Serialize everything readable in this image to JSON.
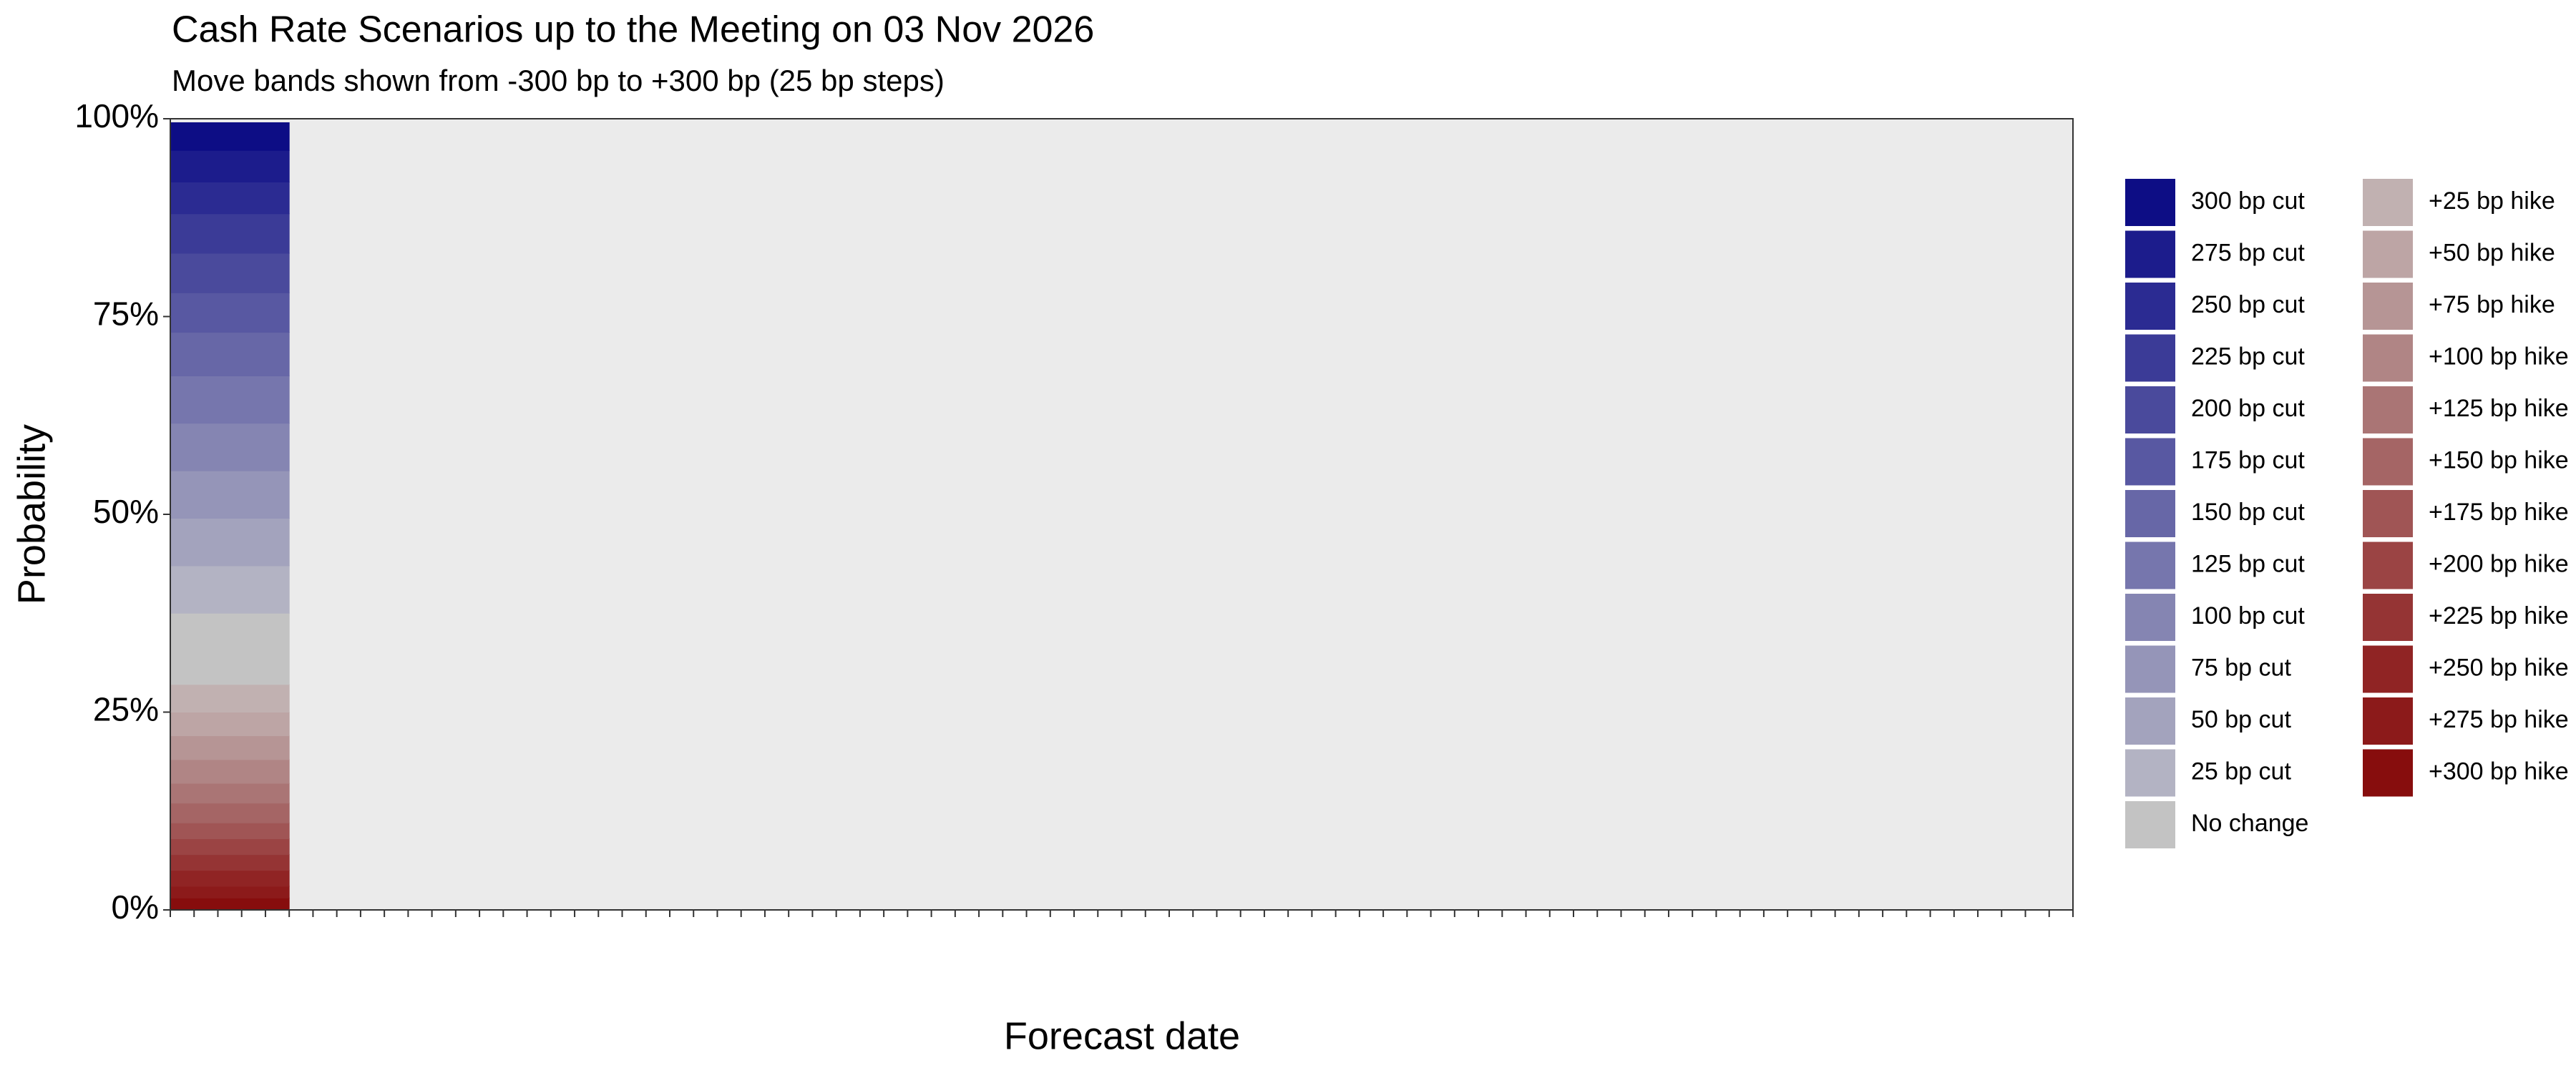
{
  "chart_data": {
    "type": "stacked_area",
    "title": "Cash Rate Scenarios up to the Meeting on 03 Nov 2026",
    "subtitle": "Move bands shown from -300 bp to +300 bp (25 bp steps)",
    "x_label": "Forecast date",
    "y_label": "Probability",
    "x": [
      0,
      1,
      2,
      3,
      4,
      5
    ],
    "xlim": [
      0,
      80
    ],
    "xticks": [
      0,
      1,
      2,
      3,
      4,
      5,
      6,
      7,
      8,
      9,
      10,
      11,
      12,
      13,
      14,
      15,
      16,
      17,
      18,
      19,
      20,
      21,
      22,
      23,
      24,
      25,
      26,
      27,
      28,
      29,
      30,
      31,
      32,
      33,
      34,
      35,
      36,
      37,
      38,
      39,
      40,
      41,
      42,
      43,
      44,
      45,
      46,
      47,
      48,
      49,
      50,
      51,
      52,
      53,
      54,
      55,
      56,
      57,
      58,
      59,
      60,
      61,
      62,
      63,
      64,
      65,
      66,
      67,
      68,
      69,
      70,
      71,
      72,
      73,
      74,
      75,
      76,
      77,
      78,
      79,
      80
    ],
    "ylim": [
      0,
      100
    ],
    "yticks": [
      {
        "value": 0,
        "label": "0%"
      },
      {
        "value": 25,
        "label": "25%"
      },
      {
        "value": 50,
        "label": "50%"
      },
      {
        "value": 75,
        "label": "75%"
      },
      {
        "value": 100,
        "label": "100%"
      }
    ],
    "series": [
      {
        "name": "300 bp cut",
        "color": "#0d0d85",
        "values": [
          3.5,
          3.5,
          3.5,
          3.5,
          3.5,
          3.5
        ]
      },
      {
        "name": "275 bp cut",
        "color": "#1c1c8c",
        "values": [
          4,
          4,
          4,
          4,
          4,
          4
        ]
      },
      {
        "name": "250 bp cut",
        "color": "#2b2b92",
        "values": [
          4,
          4,
          4,
          4,
          4,
          4
        ]
      },
      {
        "name": "225 bp cut",
        "color": "#3b3b97",
        "values": [
          5,
          5,
          5,
          5,
          5,
          5
        ]
      },
      {
        "name": "200 bp cut",
        "color": "#4a4a9c",
        "values": [
          5,
          5,
          5,
          5,
          5,
          5
        ]
      },
      {
        "name": "175 bp cut",
        "color": "#5858a2",
        "values": [
          5,
          5,
          5,
          5,
          5,
          5
        ]
      },
      {
        "name": "150 bp cut",
        "color": "#6767a7",
        "values": [
          5.5,
          5.5,
          5.5,
          5.5,
          5.5,
          5.5
        ]
      },
      {
        "name": "125 bp cut",
        "color": "#7676ad",
        "values": [
          6,
          6,
          6,
          6,
          6,
          6
        ]
      },
      {
        "name": "100 bp cut",
        "color": "#8585b2",
        "values": [
          6,
          6,
          6,
          6,
          6,
          6
        ]
      },
      {
        "name": "75 bp cut",
        "color": "#9595b8",
        "values": [
          6,
          6,
          6,
          6,
          6,
          6
        ]
      },
      {
        "name": "50 bp cut",
        "color": "#a3a3bd",
        "values": [
          6,
          6,
          6,
          6,
          6,
          6
        ]
      },
      {
        "name": "25 bp cut",
        "color": "#b3b3c3",
        "values": [
          6,
          6,
          6,
          6,
          6,
          6
        ]
      },
      {
        "name": "No change",
        "color": "#c3c3c3",
        "values": [
          9,
          9,
          9,
          9,
          9,
          9
        ]
      },
      {
        "name": "+25 bp hike",
        "color": "#c1b1b1",
        "values": [
          3.5,
          3.5,
          3.5,
          3.5,
          3.5,
          3.5
        ]
      },
      {
        "name": "+50 bp hike",
        "color": "#bda5a5",
        "values": [
          3,
          3,
          3,
          3,
          3,
          3
        ]
      },
      {
        "name": "+75 bp hike",
        "color": "#b69595",
        "values": [
          3,
          3,
          3,
          3,
          3,
          3
        ]
      },
      {
        "name": "+100 bp hike",
        "color": "#b08585",
        "values": [
          3,
          3,
          3,
          3,
          3,
          3
        ]
      },
      {
        "name": "+125 bp hike",
        "color": "#aa7575",
        "values": [
          2.5,
          2.5,
          2.5,
          2.5,
          2.5,
          2.5
        ]
      },
      {
        "name": "+150 bp hike",
        "color": "#a56565",
        "values": [
          2.5,
          2.5,
          2.5,
          2.5,
          2.5,
          2.5
        ]
      },
      {
        "name": "+175 bp hike",
        "color": "#a05555",
        "values": [
          2,
          2,
          2,
          2,
          2,
          2
        ]
      },
      {
        "name": "+200 bp hike",
        "color": "#9b4444",
        "values": [
          2,
          2,
          2,
          2,
          2,
          2
        ]
      },
      {
        "name": "+225 bp hike",
        "color": "#953434",
        "values": [
          2,
          2,
          2,
          2,
          2,
          2
        ]
      },
      {
        "name": "+250 bp hike",
        "color": "#902424",
        "values": [
          2,
          2,
          2,
          2,
          2,
          2
        ]
      },
      {
        "name": "+275 bp hike",
        "color": "#8c1a1a",
        "values": [
          1.5,
          1.5,
          1.5,
          1.5,
          1.5,
          1.5
        ]
      },
      {
        "name": "+300 bp hike",
        "color": "#870d0d",
        "values": [
          1.5,
          1.5,
          1.5,
          1.5,
          1.5,
          1.5
        ]
      }
    ],
    "background": "#ebebeb"
  }
}
